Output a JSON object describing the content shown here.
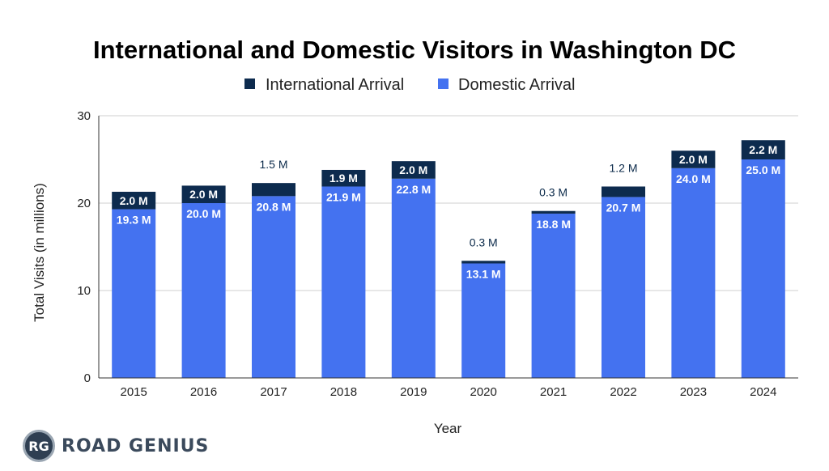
{
  "chart_data": {
    "type": "bar",
    "stacked": true,
    "title": "International and Domestic Visitors in Washington DC",
    "xlabel": "Year",
    "ylabel": "Total Visits (in millions)",
    "ylim": [
      0,
      30
    ],
    "yticks": [
      "0",
      "10",
      "20",
      "30"
    ],
    "grid": true,
    "legend_position": "top-center",
    "categories": [
      "2015",
      "2016",
      "2017",
      "2018",
      "2019",
      "2020",
      "2021",
      "2022",
      "2023",
      "2024"
    ],
    "series": [
      {
        "name": "Domestic Arrival",
        "color": "#4472f0",
        "values": [
          19.3,
          20.0,
          20.8,
          21.9,
          22.8,
          13.1,
          18.8,
          20.7,
          24.0,
          25.0
        ],
        "labels": [
          "19.3 M",
          "20.0 M",
          "20.8 M",
          "21.9 M",
          "22.8 M",
          "13.1 M",
          "18.8 M",
          "20.7 M",
          "24.0 M",
          "25.0 M"
        ]
      },
      {
        "name": "International Arrival",
        "color": "#0d2b4e",
        "values": [
          2.0,
          2.0,
          1.5,
          1.9,
          2.0,
          0.3,
          0.3,
          1.2,
          2.0,
          2.2
        ],
        "labels": [
          "2.0 M",
          "2.0 M",
          "1.5 M",
          "1.9 M",
          "2.0 M",
          "0.3 M",
          "0.3 M",
          "1.2 M",
          "2.0 M",
          "2.2 M"
        ]
      }
    ]
  },
  "legend": {
    "items": [
      {
        "label": "International Arrival",
        "color": "#0d2b4e"
      },
      {
        "label": "Domestic Arrival",
        "color": "#4472f0"
      }
    ]
  },
  "brand": {
    "mark": "RG",
    "name": "ROAD GENIUS",
    "icon": "road-genius-logo-icon"
  }
}
